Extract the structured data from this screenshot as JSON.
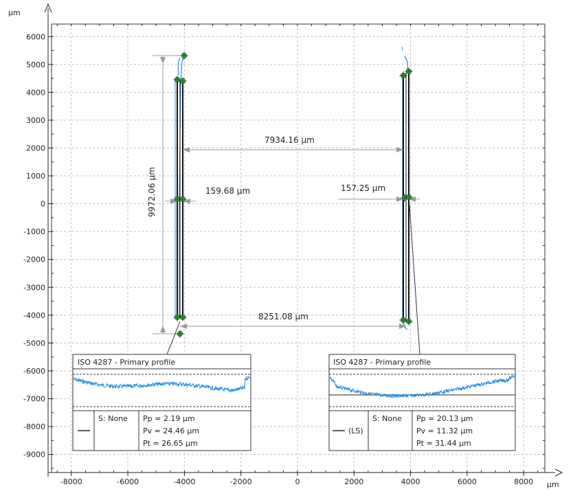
{
  "axes": {
    "x_unit": "µm",
    "y_unit": "µm",
    "x_ticks": [
      -8000,
      -6000,
      -4000,
      -2000,
      0,
      2000,
      4000,
      6000,
      8000
    ],
    "y_ticks": [
      6000,
      5000,
      4000,
      3000,
      2000,
      1000,
      0,
      -1000,
      -2000,
      -3000,
      -4000,
      -5000,
      -6000,
      -7000,
      -8000,
      -9000
    ],
    "xlim": [
      -8700,
      8750
    ],
    "ylim": [
      -9650,
      6450
    ],
    "grid": true
  },
  "measurements": {
    "height": "9972.06 µm",
    "left_width": "159.68 µm",
    "right_width": "157.25 µm",
    "top_distance": "7934.16 µm",
    "bottom_distance": "8251.08 µm"
  },
  "profile_left": {
    "title": "ISO 4287 - Primary profile",
    "legend": "",
    "filter": "S: None",
    "pp": "Pp = 2.19 µm",
    "pv": "Pv = 24.46 µm",
    "pt": "Pt = 26.65 µm"
  },
  "profile_right": {
    "title": "ISO 4287 - Primary profile",
    "legend": "(LS)",
    "filter": "S: None",
    "pp": "Pp = 20.13 µm",
    "pv": "Pv = 11.32 µm",
    "pt": "Pt = 31.44 µm"
  },
  "colors": {
    "profile": "#1e8ae6",
    "marker": "#3cb043",
    "grid": "#bfbfbf",
    "dimension": "#9a9a9a"
  }
}
